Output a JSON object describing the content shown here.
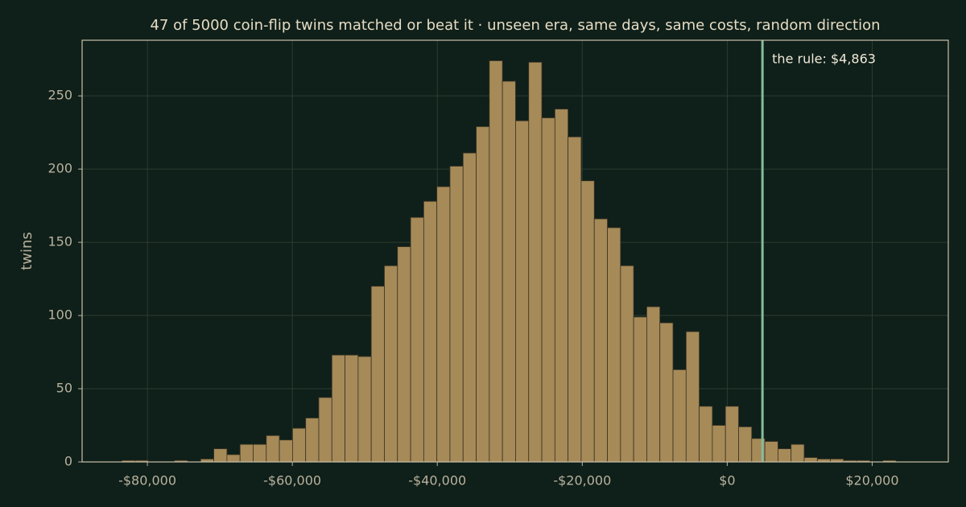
{
  "chart_data": {
    "type": "histogram",
    "title": "47 of 5000 coin-flip twins matched or beat it  ·  unseen era, same days, same costs, random direction",
    "y_label": "twins",
    "bins": [
      -83500,
      -81690,
      -79880,
      -78070,
      -76260,
      -74450,
      -72640,
      -70830,
      -69020,
      -67210,
      -65400,
      -63590,
      -61780,
      -59970,
      -58160,
      -56350,
      -54540,
      -52730,
      -50920,
      -49110,
      -47300,
      -45490,
      -43680,
      -41870,
      -40060,
      -38250,
      -36440,
      -34630,
      -32820,
      -31010,
      -29200,
      -27390,
      -25580,
      -23770,
      -21960,
      -20150,
      -18340,
      -16530,
      -14720,
      -12910,
      -11100,
      -9290,
      -7480,
      -5670,
      -3860,
      -2050,
      -240,
      1570,
      3380,
      5190,
      7000,
      8810,
      10620,
      12430,
      14240,
      16050,
      17860,
      19670,
      21480,
      23290,
      25100
    ],
    "values": [
      1,
      1,
      0,
      0,
      1,
      0,
      2,
      9,
      5,
      12,
      12,
      18,
      15,
      23,
      30,
      44,
      73,
      73,
      72,
      120,
      134,
      147,
      167,
      178,
      188,
      202,
      211,
      229,
      274,
      260,
      233,
      273,
      235,
      241,
      222,
      192,
      166,
      160,
      134,
      99,
      106,
      95,
      63,
      89,
      38,
      25,
      38,
      24,
      16,
      14,
      9,
      12,
      3,
      2,
      2,
      1,
      1,
      0,
      1,
      0
    ],
    "color": "#a68a58",
    "xlim": [
      -89000,
      30500
    ],
    "ylim": [
      0,
      288
    ],
    "xticks": [
      {
        "value": -80000,
        "label": "-$80,000"
      },
      {
        "value": -60000,
        "label": "-$60,000"
      },
      {
        "value": -40000,
        "label": "-$40,000"
      },
      {
        "value": -20000,
        "label": "-$20,000"
      },
      {
        "value": 0,
        "label": "$0"
      },
      {
        "value": 20000,
        "label": "$20,000"
      }
    ],
    "yticks": [
      0,
      50,
      100,
      150,
      200,
      250
    ],
    "grid": true,
    "annotations": [
      {
        "x": 4863,
        "label": "the rule: $4,863",
        "color": "#86bb9c"
      }
    ]
  }
}
